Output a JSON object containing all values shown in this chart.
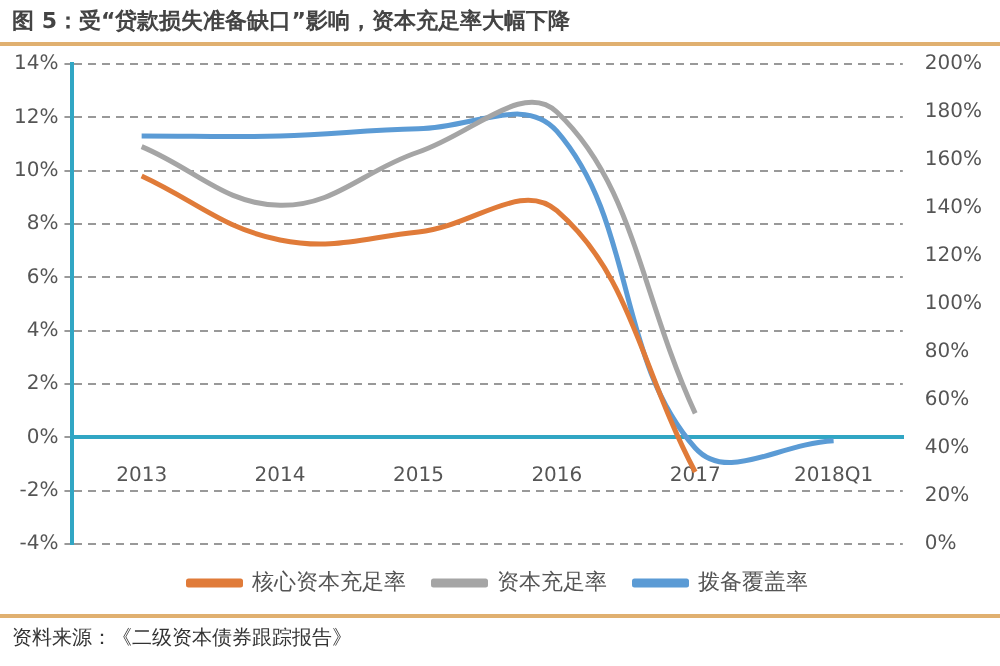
{
  "chart_data": {
    "type": "line",
    "title": "图 5：受“贷款损失准备缺口”影响，资本充足率大幅下降",
    "categories": [
      "2013",
      "2014",
      "2015",
      "2016",
      "2017",
      "2018Q1"
    ],
    "series": [
      {
        "name": "核心资本充足率",
        "color": "#e07b39",
        "values": [
          9.8,
          7.4,
          7.7,
          8.5,
          -1.3,
          null
        ]
      },
      {
        "name": "资本充足率",
        "color": "#a5a5a5",
        "values": [
          10.9,
          8.7,
          10.7,
          12.2,
          0.9,
          null
        ]
      },
      {
        "name": "拨备覆盖率",
        "color": "#5b9bd5",
        "axis": "y2",
        "values": [
          170,
          170,
          173,
          172,
          40,
          43
        ]
      }
    ],
    "ylim": [
      -4,
      14
    ],
    "yticks": [
      {
        "value": -4,
        "label": "-4%"
      },
      {
        "value": -2,
        "label": "-2%"
      },
      {
        "value": 0,
        "label": "0%"
      },
      {
        "value": 2,
        "label": "2%"
      },
      {
        "value": 4,
        "label": "4%"
      },
      {
        "value": 6,
        "label": "6%"
      },
      {
        "value": 8,
        "label": "8%"
      },
      {
        "value": 10,
        "label": "10%"
      },
      {
        "value": 12,
        "label": "12%"
      },
      {
        "value": 14,
        "label": "14%"
      }
    ],
    "y2lim": [
      0,
      200
    ],
    "y2ticks": [
      {
        "value": 0,
        "label": "0%"
      },
      {
        "value": 20,
        "label": "20%"
      },
      {
        "value": 40,
        "label": "40%"
      },
      {
        "value": 60,
        "label": "60%"
      },
      {
        "value": 80,
        "label": "80%"
      },
      {
        "value": 100,
        "label": "100%"
      },
      {
        "value": 120,
        "label": "120%"
      },
      {
        "value": 140,
        "label": "140%"
      },
      {
        "value": 160,
        "label": "160%"
      },
      {
        "value": 180,
        "label": "180%"
      },
      {
        "value": 200,
        "label": "200%"
      }
    ],
    "grid": "y",
    "legend": "bottom",
    "marker": "none",
    "annotations": [
      "资料来源：《二级资本债券跟踪报告》"
    ]
  }
}
